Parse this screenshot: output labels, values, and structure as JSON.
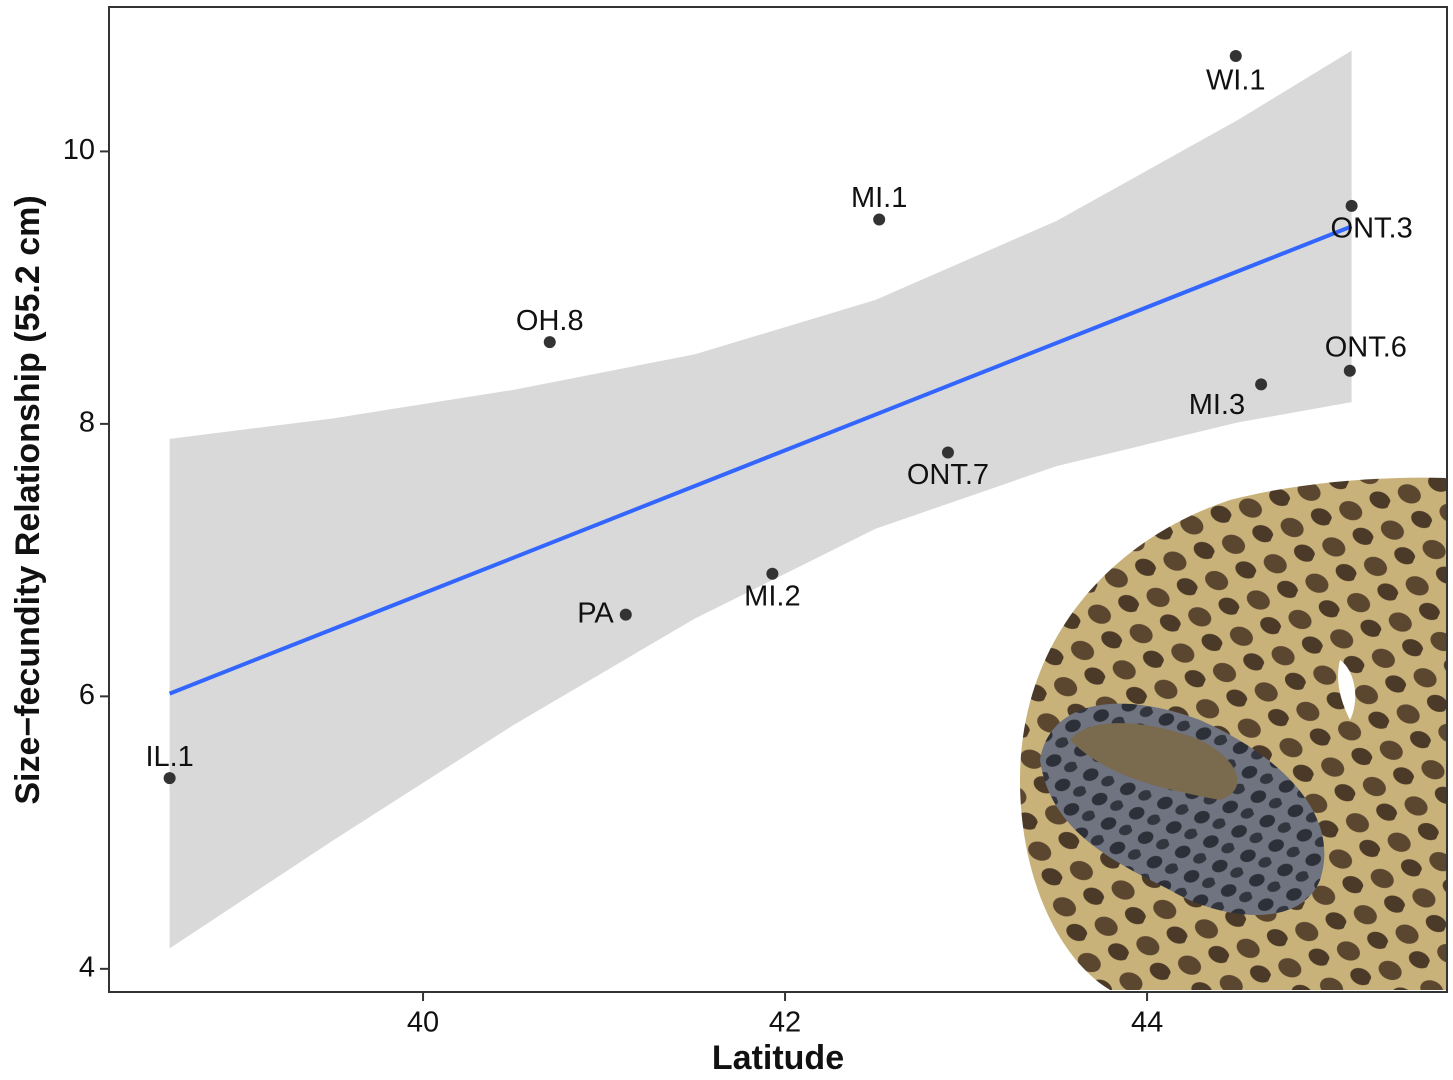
{
  "chart_data": {
    "type": "scatter",
    "x_label": "Latitude",
    "y_label": "Size−fecundity Relationship (55.2 cm)",
    "x": [
      38.6,
      41.12,
      41.93,
      40.7,
      42.52,
      42.9,
      44.49,
      44.63,
      45.12,
      45.13
    ],
    "y": [
      5.4,
      6.6,
      6.9,
      8.6,
      9.5,
      7.79,
      10.7,
      8.29,
      8.39,
      9.6
    ],
    "point_labels": [
      "IL.1",
      "PA",
      "MI.2",
      "OH.8",
      "MI.1",
      "ONT.7",
      "WI.1",
      "MI.3",
      "ONT.6",
      "ONT.3"
    ],
    "point_color": "#333333",
    "trend": {
      "x": [
        38.6,
        45.13
      ],
      "values": [
        6.02,
        9.45
      ],
      "color": "#3366ff"
    },
    "band": {
      "x": [
        38.6,
        39.5,
        40.5,
        41.5,
        42.5,
        43.5,
        44.5,
        45.13
      ],
      "lower": [
        4.15,
        4.94,
        5.79,
        6.57,
        7.23,
        7.69,
        8.01,
        8.16
      ],
      "upper": [
        7.89,
        8.04,
        8.25,
        8.51,
        8.91,
        9.49,
        10.23,
        10.74
      ],
      "color": "#d9d9d9"
    },
    "xlim": [
      38.265,
      45.657
    ],
    "ylim": [
      3.83,
      11.06
    ],
    "xticks": [
      40,
      42,
      44
    ],
    "yticks": [
      4,
      6,
      8,
      10
    ]
  }
}
